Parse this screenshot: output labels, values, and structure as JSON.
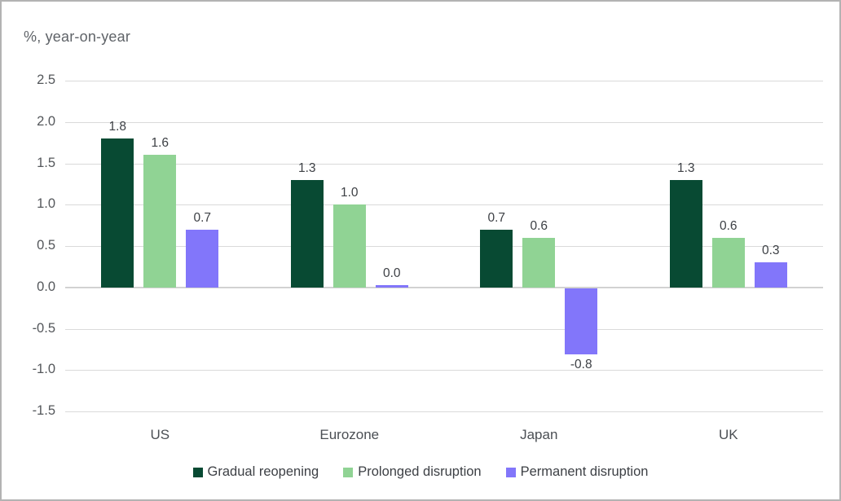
{
  "chart": {
    "title": "%, year-on-year"
  },
  "chart_data": {
    "type": "bar",
    "title": "%, year-on-year",
    "categories": [
      "US",
      "Eurozone",
      "Japan",
      "UK"
    ],
    "series": [
      {
        "name": "Gradual reopening",
        "color": "#084a33",
        "values": [
          1.8,
          1.3,
          0.7,
          1.3
        ]
      },
      {
        "name": "Prolonged disruption",
        "color": "#90d394",
        "values": [
          1.6,
          1.0,
          0.6,
          0.6
        ]
      },
      {
        "name": "Permanent disruption",
        "color": "#8276fa",
        "values": [
          0.7,
          0.0,
          -0.8,
          0.3
        ]
      }
    ],
    "yticks": [
      2.5,
      2.0,
      1.5,
      1.0,
      0.5,
      0.0,
      -0.5,
      -1.0,
      -1.5
    ],
    "ylim": [
      -1.5,
      2.5
    ],
    "xlabel": "",
    "ylabel": "",
    "grid": true,
    "legend_position": "bottom",
    "colors": {
      "gridline": "#dadada",
      "tick_text": "#54575b",
      "label_text": "#3d4045",
      "title_text": "#5f6368",
      "frame_border": "#b3b3b3",
      "background": "#ffffff"
    }
  }
}
